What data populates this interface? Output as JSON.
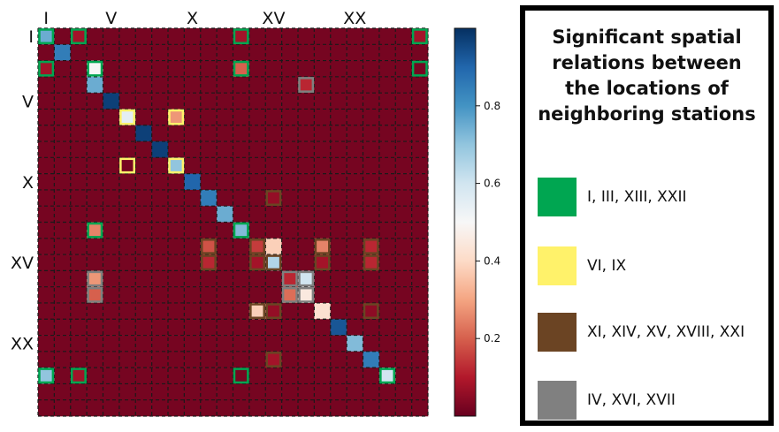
{
  "chart_data": {
    "type": "heatmap",
    "size": 24,
    "x_tick_labels": [
      {
        "index": 0,
        "label": "I"
      },
      {
        "index": 4,
        "label": "V"
      },
      {
        "index": 9,
        "label": "X"
      },
      {
        "index": 14,
        "label": "XV"
      },
      {
        "index": 19,
        "label": "XX"
      }
    ],
    "y_tick_labels": [
      {
        "index": 0,
        "label": "I"
      },
      {
        "index": 4,
        "label": "V"
      },
      {
        "index": 9,
        "label": "X"
      },
      {
        "index": 14,
        "label": "XV"
      },
      {
        "index": 19,
        "label": "XX"
      }
    ],
    "background_value": 0.02,
    "cells": [
      [
        0,
        0,
        0.75
      ],
      [
        0,
        2,
        0.08
      ],
      [
        0,
        12,
        0.08
      ],
      [
        0,
        23,
        0.08
      ],
      [
        1,
        1,
        0.85
      ],
      [
        2,
        0,
        0.08
      ],
      [
        2,
        3,
        0.5
      ],
      [
        2,
        12,
        0.2
      ],
      [
        2,
        23,
        0.02
      ],
      [
        3,
        3,
        0.75
      ],
      [
        3,
        16,
        0.12
      ],
      [
        4,
        4,
        0.97
      ],
      [
        5,
        5,
        0.55
      ],
      [
        5,
        8,
        0.28
      ],
      [
        6,
        6,
        0.97
      ],
      [
        7,
        7,
        0.97
      ],
      [
        8,
        5,
        0.02
      ],
      [
        8,
        8,
        0.7
      ],
      [
        9,
        9,
        0.9
      ],
      [
        10,
        10,
        0.85
      ],
      [
        10,
        14,
        0.06
      ],
      [
        11,
        11,
        0.75
      ],
      [
        12,
        3,
        0.25
      ],
      [
        12,
        12,
        0.72
      ],
      [
        13,
        10,
        0.18
      ],
      [
        13,
        13,
        0.15
      ],
      [
        13,
        14,
        0.38
      ],
      [
        13,
        17,
        0.25
      ],
      [
        13,
        20,
        0.12
      ],
      [
        14,
        10,
        0.12
      ],
      [
        14,
        13,
        0.08
      ],
      [
        14,
        14,
        0.65
      ],
      [
        14,
        17,
        0.08
      ],
      [
        14,
        20,
        0.12
      ],
      [
        15,
        3,
        0.28
      ],
      [
        15,
        15,
        0.12
      ],
      [
        15,
        16,
        0.6
      ],
      [
        16,
        3,
        0.2
      ],
      [
        16,
        15,
        0.22
      ],
      [
        16,
        16,
        0.45
      ],
      [
        17,
        13,
        0.38
      ],
      [
        17,
        14,
        0.06
      ],
      [
        17,
        17,
        0.42
      ],
      [
        17,
        20,
        0.05
      ],
      [
        18,
        18,
        0.93
      ],
      [
        19,
        19,
        0.72
      ],
      [
        20,
        14,
        0.08
      ],
      [
        20,
        20,
        0.85
      ],
      [
        21,
        0,
        0.7
      ],
      [
        21,
        2,
        0.08
      ],
      [
        21,
        12,
        0.02
      ],
      [
        21,
        21,
        0.6
      ]
    ],
    "highlight_groups": [
      {
        "color": "#00a651",
        "cells": [
          [
            0,
            0
          ],
          [
            0,
            2
          ],
          [
            0,
            12
          ],
          [
            0,
            23
          ],
          [
            2,
            0
          ],
          [
            2,
            3
          ],
          [
            2,
            12
          ],
          [
            2,
            23
          ],
          [
            12,
            3
          ],
          [
            12,
            12
          ],
          [
            21,
            0
          ],
          [
            21,
            2
          ],
          [
            21,
            12
          ],
          [
            21,
            21
          ]
        ]
      },
      {
        "color": "#fff26a",
        "cells": [
          [
            5,
            5
          ],
          [
            5,
            8
          ],
          [
            8,
            5
          ],
          [
            8,
            8
          ]
        ]
      },
      {
        "color": "#6b4423",
        "cells": [
          [
            10,
            14
          ],
          [
            13,
            10
          ],
          [
            13,
            13
          ],
          [
            13,
            17
          ],
          [
            13,
            20
          ],
          [
            14,
            10
          ],
          [
            14,
            13
          ],
          [
            14,
            14
          ],
          [
            14,
            17
          ],
          [
            14,
            20
          ],
          [
            17,
            13
          ],
          [
            17,
            14
          ],
          [
            17,
            20
          ],
          [
            20,
            14
          ]
        ]
      },
      {
        "color": "#808080",
        "cells": [
          [
            3,
            16
          ],
          [
            15,
            3
          ],
          [
            15,
            15
          ],
          [
            15,
            16
          ],
          [
            16,
            3
          ],
          [
            16,
            15
          ],
          [
            16,
            16
          ]
        ]
      }
    ],
    "colorbar": {
      "colormap": "RdBu",
      "range": [
        0,
        1
      ],
      "ticks": [
        0.2,
        0.4,
        0.6,
        0.8
      ],
      "tick_labels": [
        "0.2",
        "0.4",
        "0.6",
        "0.8"
      ]
    },
    "legend": {
      "title": "Significant spatial relations between the locations of neighboring stations",
      "title_lines": [
        "Significant spatial",
        "relations between",
        "the locations of",
        "neighboring stations"
      ],
      "entries": [
        {
          "color": "#00a651",
          "label": "I, III, XIII, XXII"
        },
        {
          "color": "#fff26a",
          "label": "VI, IX"
        },
        {
          "color": "#6b4423",
          "label": "XI, XIV, XV, XVIII, XXI"
        },
        {
          "color": "#808080",
          "label": "IV, XVI, XVII"
        }
      ]
    }
  }
}
